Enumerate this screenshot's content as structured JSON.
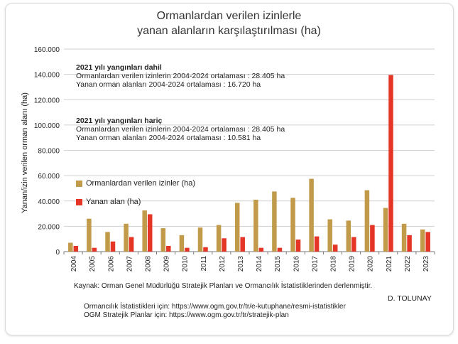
{
  "chart_data": {
    "type": "bar",
    "title": "Ormanlardan verilen izinlerle",
    "subtitle": "yanan  alanların karşılaştırılması (ha)",
    "ylabel": "Yanan/izin verilen orman alanı (ha)",
    "xlabel": "",
    "ylim": [
      0,
      160000
    ],
    "yticks": [
      0,
      20000,
      40000,
      60000,
      80000,
      100000,
      120000,
      140000,
      160000
    ],
    "ytick_labels": [
      "0",
      "20.000",
      "40.000",
      "60.000",
      "80.000",
      "100.000",
      "120.000",
      "140.000",
      "160.000"
    ],
    "grid": true,
    "legend_position": "left-middle",
    "categories": [
      "2004",
      "2005",
      "2006",
      "2007",
      "2008",
      "2009",
      "2010",
      "2011",
      "2012",
      "2013",
      "2014",
      "2015",
      "2016",
      "2017",
      "2018",
      "2019",
      "2020",
      "2021",
      "2022",
      "2023"
    ],
    "series": [
      {
        "name": "Ormanlardan verilen izinler (ha)",
        "color": "#c19a4a",
        "values": [
          7000,
          26000,
          15500,
          22000,
          32500,
          18500,
          13000,
          19000,
          21000,
          38500,
          41000,
          47500,
          42500,
          57500,
          25500,
          24500,
          48500,
          34500,
          22000,
          17500
        ]
      },
      {
        "name": "Yanan alan (ha)",
        "color": "#e53527",
        "values": [
          4500,
          3000,
          8000,
          11500,
          29500,
          4500,
          3000,
          3500,
          10500,
          11500,
          3000,
          3000,
          9500,
          12000,
          5500,
          11500,
          21000,
          139500,
          13000,
          15500
        ]
      }
    ],
    "annotations": {
      "dahil": {
        "header": "2021 yılı yangınları dahil",
        "line1": "Ormanlardan  verilen izinlerin 2004-2024 ortalaması  : 28.405 ha",
        "line2": "Yanan orman alanları 2004-2024  ortalaması           : 16.720 ha"
      },
      "haric": {
        "header": "2021 yılı yangınları hariç",
        "line1": "Ormanlardan verilen izinlerin 2004-2024 ortalaması  : 28.405 ha",
        "line2": "Yanan orman alanları 2004-2024 ortalaması               : 10.581 ha"
      }
    }
  },
  "footer": {
    "source": "Kaynak: Orman Genel Müdürlüğü Stratejik Planları ve Ormancılık İstatistiklerinden derlenmiştir.",
    "author": "D. TOLUNAY",
    "link1": "Ormancılık İstatistikleri için: https://www.ogm.gov.tr/tr/e-kutuphane/resmi-istatistikler",
    "link2": "OGM Stratejik Planlar için: https://www.ogm.gov.tr/tr/stratejik-plan"
  }
}
